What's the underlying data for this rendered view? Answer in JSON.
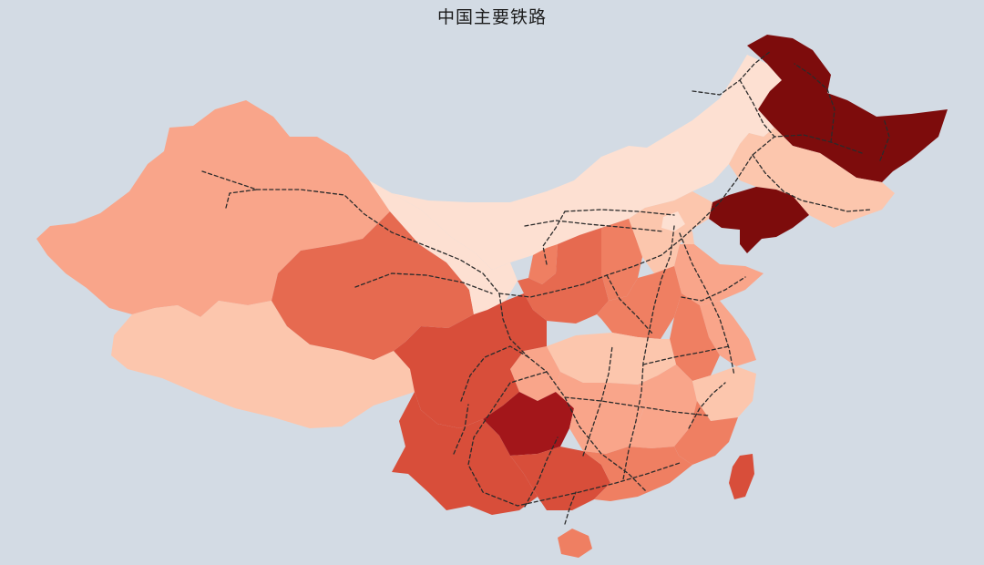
{
  "title": "中国主要铁路",
  "colors": {
    "ocean": "#d3dbe4",
    "railway": "#2b2b2b",
    "scale": [
      "#fde0d2",
      "#fcc6ad",
      "#f9a58a",
      "#ef7f62",
      "#e66a50",
      "#d84e3a",
      "#c8362a",
      "#a3161a",
      "#7d0c0c"
    ]
  },
  "map": {
    "type": "choropleth",
    "regions": [
      {
        "name": "xinjiang",
        "level": 2
      },
      {
        "name": "tibet",
        "level": 1
      },
      {
        "name": "qinghai",
        "level": 4
      },
      {
        "name": "gansu",
        "level": 0
      },
      {
        "name": "inner-mongolia",
        "level": 0
      },
      {
        "name": "heilongjiang",
        "level": 8
      },
      {
        "name": "jilin",
        "level": 1
      },
      {
        "name": "liaoning",
        "level": 8
      },
      {
        "name": "hebei",
        "level": 1
      },
      {
        "name": "beijing",
        "level": 0
      },
      {
        "name": "tianjin",
        "level": 1
      },
      {
        "name": "shanxi",
        "level": 3
      },
      {
        "name": "shaanxi",
        "level": 4
      },
      {
        "name": "ningxia",
        "level": 3
      },
      {
        "name": "henan",
        "level": 3
      },
      {
        "name": "shandong",
        "level": 2
      },
      {
        "name": "jiangsu",
        "level": 2
      },
      {
        "name": "anhui",
        "level": 3
      },
      {
        "name": "hubei",
        "level": 1
      },
      {
        "name": "chongqing",
        "level": 2
      },
      {
        "name": "sichuan",
        "level": 5
      },
      {
        "name": "yunnan",
        "level": 5
      },
      {
        "name": "guizhou",
        "level": 7
      },
      {
        "name": "hunan",
        "level": 2
      },
      {
        "name": "jiangxi",
        "level": 2
      },
      {
        "name": "zhejiang",
        "level": 1
      },
      {
        "name": "fujian",
        "level": 3
      },
      {
        "name": "guangxi",
        "level": 5
      },
      {
        "name": "guangdong",
        "level": 3
      },
      {
        "name": "hainan",
        "level": 3
      },
      {
        "name": "taiwan",
        "level": 5
      }
    ]
  }
}
